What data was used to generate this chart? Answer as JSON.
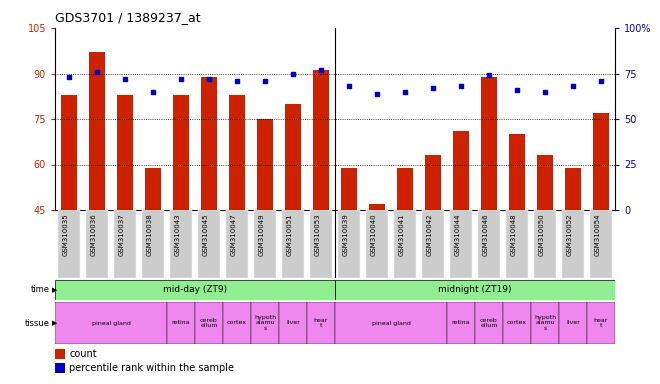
{
  "title": "GDS3701 / 1389237_at",
  "samples": [
    "GSM310035",
    "GSM310036",
    "GSM310037",
    "GSM310038",
    "GSM310043",
    "GSM310045",
    "GSM310047",
    "GSM310049",
    "GSM310051",
    "GSM310053",
    "GSM310039",
    "GSM310040",
    "GSM310041",
    "GSM310042",
    "GSM310044",
    "GSM310046",
    "GSM310048",
    "GSM310050",
    "GSM310052",
    "GSM310054"
  ],
  "counts": [
    83,
    97,
    83,
    59,
    83,
    89,
    83,
    75,
    80,
    91,
    59,
    47,
    59,
    63,
    71,
    89,
    70,
    63,
    59,
    77
  ],
  "percentiles": [
    73,
    76,
    72,
    65,
    72,
    72,
    71,
    71,
    75,
    77,
    68,
    64,
    65,
    67,
    68,
    74,
    66,
    65,
    68,
    71
  ],
  "ylim_left": [
    45,
    105
  ],
  "ylim_right": [
    0,
    100
  ],
  "yticks_left": [
    45,
    60,
    75,
    90,
    105
  ],
  "yticks_right": [
    0,
    25,
    50,
    75,
    100
  ],
  "bar_color": "#cc2200",
  "dot_color": "#0000cc",
  "bg_color": "#ffffff",
  "tick_bg_color": "#cccccc",
  "green_color": "#90ee90",
  "pink_color": "#ee88ee",
  "tissue_defs": [
    [
      0,
      4,
      "pineal gland"
    ],
    [
      4,
      5,
      "retina"
    ],
    [
      5,
      6,
      "cereb\nellum"
    ],
    [
      6,
      7,
      "cortex"
    ],
    [
      7,
      8,
      "hypoth\nalamu\ns"
    ],
    [
      8,
      9,
      "liver"
    ],
    [
      9,
      10,
      "hear\nt"
    ],
    [
      10,
      14,
      "pineal gland"
    ],
    [
      14,
      15,
      "retina"
    ],
    [
      15,
      16,
      "cereb\nellum"
    ],
    [
      16,
      17,
      "cortex"
    ],
    [
      17,
      18,
      "hypoth\nalamu\ns"
    ],
    [
      18,
      19,
      "liver"
    ],
    [
      19,
      20,
      "hear\nt"
    ]
  ]
}
